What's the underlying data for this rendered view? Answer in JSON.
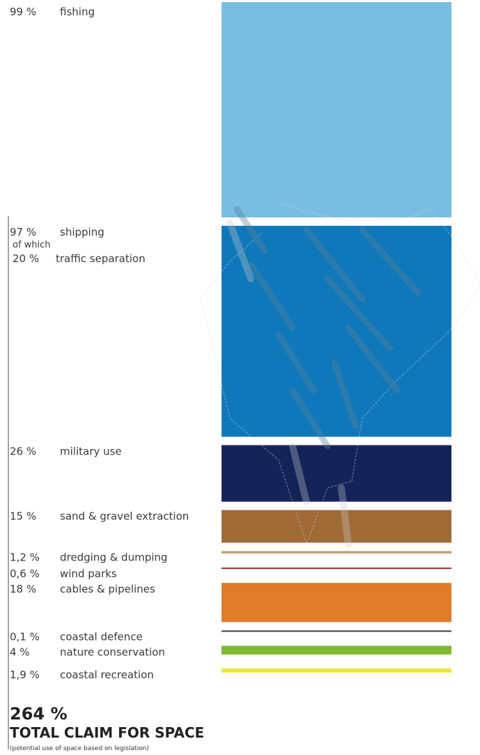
{
  "chart_data": {
    "type": "bar",
    "orientation": "stacked-vertical",
    "unit": "%",
    "categories": [
      {
        "pct": "99 %",
        "value": 99,
        "label": "fishing",
        "color": "#79bde2"
      },
      {
        "pct": "97 %",
        "value": 97,
        "label": "shipping",
        "color": "#0f78ba",
        "sub_label": "of which",
        "sub": {
          "pct": "20 %",
          "value": 20,
          "label": "traffic separation"
        }
      },
      {
        "pct": "26 %",
        "value": 26,
        "label": "military use",
        "color": "#14235a"
      },
      {
        "pct": "15 %",
        "value": 15,
        "label": "sand & gravel extraction",
        "color": "#a06a35"
      },
      {
        "pct": "1,2 %",
        "value": 1.2,
        "label": "dredging & dumping",
        "color": "#c1a478"
      },
      {
        "pct": "0,6 %",
        "value": 0.6,
        "label": "wind parks",
        "color": "#9b2a2a"
      },
      {
        "pct": "18 %",
        "value": 18,
        "label": "cables & pipelines",
        "color": "#e07b2c"
      },
      {
        "pct": "0,1 %",
        "value": 0.1,
        "label": "coastal defence",
        "color": "#3d3d3d"
      },
      {
        "pct": "4 %",
        "value": 4,
        "label": "nature conservation",
        "color": "#7cba32"
      },
      {
        "pct": "1,9 %",
        "value": 1.9,
        "label": "coastal recreation",
        "color": "#ece53a"
      }
    ],
    "total": {
      "value": "264 %",
      "label": "TOTAL CLAIM FOR SPACE",
      "note": "(potential use of space based on legislation)"
    }
  }
}
